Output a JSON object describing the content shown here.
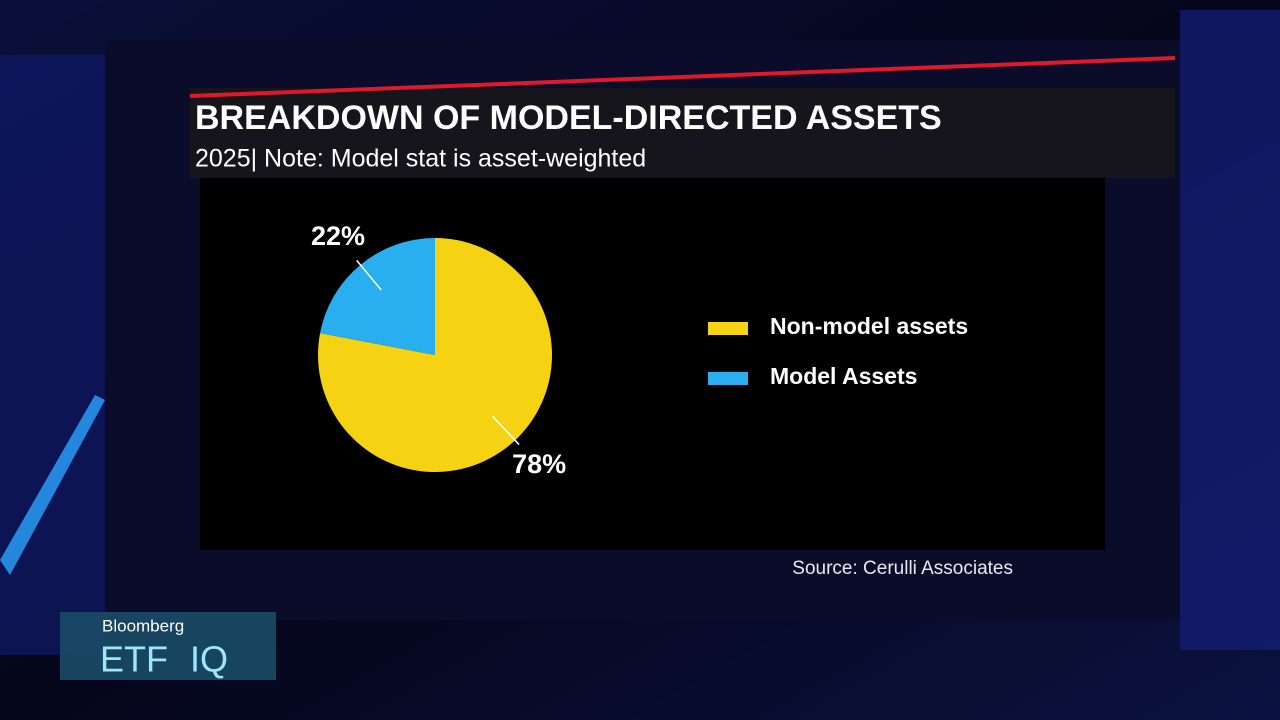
{
  "chart_data": {
    "type": "pie",
    "title": "BREAKDOWN OF MODEL-DIRECTED ASSETS",
    "subtitle": "2025| Note: Model stat is asset-weighted",
    "categories": [
      "Non-model assets",
      "Model Assets"
    ],
    "values": [
      78,
      22
    ],
    "value_labels": [
      "78%",
      "22%"
    ],
    "colors": [
      "#f5d312",
      "#29aef0"
    ],
    "source": "Source: Cerulli Associates"
  },
  "branding": {
    "network": "Bloomberg",
    "show": "ETF",
    "show_suffix": "IQ"
  }
}
